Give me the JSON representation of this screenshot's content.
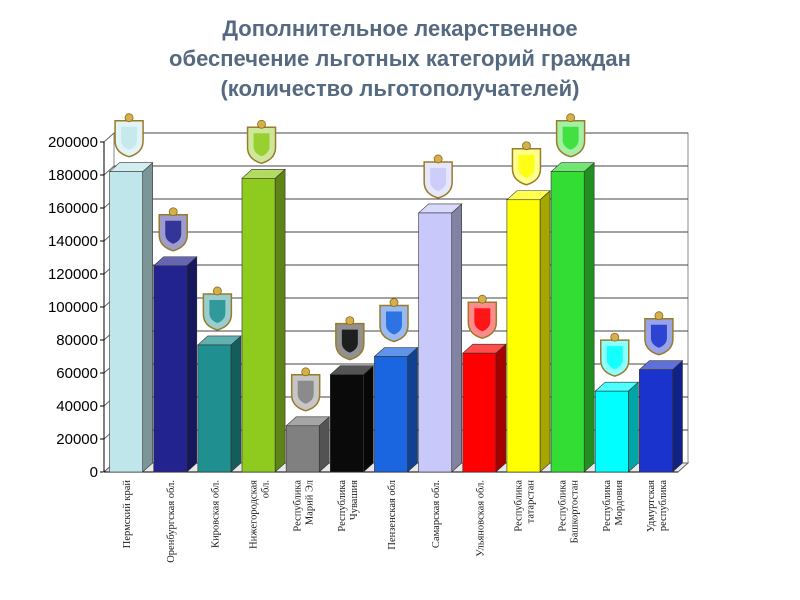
{
  "title": {
    "line1": "Дополнительное лекарственное",
    "line2": "обеспечение льготных категорий граждан",
    "line3": "(количество льготополучателей)"
  },
  "chart_data": {
    "type": "bar",
    "title": "Дополнительное лекарственное обеспечение льготных категорий граждан (количество льготополучателей)",
    "ylim": [
      0,
      200000
    ],
    "yticks": [
      "0",
      "20000",
      "40000",
      "60000",
      "80000",
      "100000",
      "120000",
      "140000",
      "160000",
      "180000",
      "200000"
    ],
    "grid": true,
    "categories": [
      [
        "Пермский край"
      ],
      [
        "Оренбургская обл."
      ],
      [
        "Кировская обл."
      ],
      [
        "Нижегородская",
        "обл."
      ],
      [
        "Республика",
        "Марий Эл"
      ],
      [
        "Республика",
        "Чувашия"
      ],
      [
        "Пензенская обл"
      ],
      [
        "Самарская обл."
      ],
      [
        "Ульяновская обл."
      ],
      [
        "Республика",
        "татарстан"
      ],
      [
        "Республика",
        "Башкортостан"
      ],
      [
        "Республика",
        "Мордовия"
      ],
      [
        "Удмуртская",
        "республика"
      ]
    ],
    "values": [
      182000,
      125000,
      77000,
      178000,
      28000,
      59000,
      70000,
      157000,
      72000,
      165000,
      182000,
      49000,
      62000
    ],
    "colors": [
      "#bfe6ea",
      "#23238f",
      "#1f8f8f",
      "#8fcb1e",
      "#808080",
      "#0a0a0a",
      "#1a66e0",
      "#c8c8fb",
      "#ff0000",
      "#ffff00",
      "#33dd33",
      "#00ffff",
      "#1a33cc"
    ],
    "emblems": [
      "perm-coat-of-arms-icon",
      "orenburg-coat-of-arms-icon",
      "kirov-coat-of-arms-icon",
      "nizhny-novgorod-coat-of-arms-icon",
      "mari-el-coat-of-arms-icon",
      "chuvashia-coat-of-arms-icon",
      "penza-coat-of-arms-icon",
      "samara-coat-of-arms-icon",
      "ulyanovsk-coat-of-arms-icon",
      "tatarstan-coat-of-arms-icon",
      "bashkortostan-coat-of-arms-icon",
      "mordovia-coat-of-arms-icon",
      "udmurtia-coat-of-arms-icon"
    ]
  }
}
